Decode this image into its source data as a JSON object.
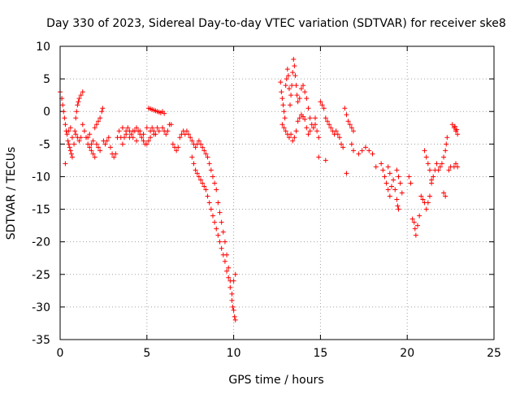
{
  "chart_data": {
    "type": "scatter",
    "title": "Day 330 of 2023, Sidereal Day-to-day VTEC variation (SDTVAR) for receiver ske8",
    "xlabel": "GPS time / hours",
    "ylabel": "SDTVAR / TECUs",
    "xlim": [
      0,
      25
    ],
    "ylim": [
      -35,
      10
    ],
    "xticks": [
      0,
      5,
      10,
      15,
      20,
      25
    ],
    "yticks": [
      10,
      5,
      0,
      -5,
      -10,
      -15,
      -20,
      -25,
      -30,
      -35
    ],
    "xtick_labels": [
      "0",
      "5",
      "10",
      "15",
      "20",
      "25"
    ],
    "ytick_labels": [
      "10",
      "5",
      "0",
      "-5",
      "-10",
      "-15",
      "-20",
      "-25",
      "-30",
      "-35"
    ],
    "grid": true,
    "marker": "+",
    "color": "#ff0000",
    "series": [
      {
        "name": "SDTVAR",
        "points": [
          [
            0.0,
            3.0
          ],
          [
            0.1,
            2.0
          ],
          [
            0.15,
            1.0
          ],
          [
            0.2,
            0.0
          ],
          [
            0.25,
            -1.0
          ],
          [
            0.3,
            -2.0
          ],
          [
            0.35,
            -3.0
          ],
          [
            0.4,
            -3.5
          ],
          [
            0.45,
            -4.5
          ],
          [
            0.5,
            -5.0
          ],
          [
            0.55,
            -5.5
          ],
          [
            0.6,
            -6.0
          ],
          [
            0.65,
            -6.5
          ],
          [
            0.7,
            -7.0
          ],
          [
            0.3,
            -8.0
          ],
          [
            0.5,
            -3.0
          ],
          [
            0.6,
            -2.5
          ],
          [
            0.7,
            -4.0
          ],
          [
            0.8,
            -5.0
          ],
          [
            0.85,
            -3.0
          ],
          [
            0.9,
            -1.0
          ],
          [
            0.95,
            0.0
          ],
          [
            1.0,
            1.0
          ],
          [
            1.05,
            1.5
          ],
          [
            1.1,
            2.0
          ],
          [
            1.2,
            2.5
          ],
          [
            1.3,
            3.0
          ],
          [
            0.9,
            -3.5
          ],
          [
            1.0,
            -4.0
          ],
          [
            1.1,
            -4.5
          ],
          [
            1.2,
            -4.0
          ],
          [
            1.3,
            -2.0
          ],
          [
            1.4,
            -3.0
          ],
          [
            1.5,
            -4.0
          ],
          [
            1.6,
            -5.0
          ],
          [
            1.7,
            -5.5
          ],
          [
            1.8,
            -6.0
          ],
          [
            1.9,
            -6.5
          ],
          [
            2.0,
            -7.0
          ],
          [
            1.6,
            -4.0
          ],
          [
            1.7,
            -3.5
          ],
          [
            1.8,
            -5.0
          ],
          [
            1.9,
            -4.5
          ],
          [
            2.0,
            -2.5
          ],
          [
            2.1,
            -2.0
          ],
          [
            2.2,
            -1.5
          ],
          [
            2.3,
            -1.0
          ],
          [
            2.4,
            0.0
          ],
          [
            2.45,
            0.5
          ],
          [
            2.1,
            -5.0
          ],
          [
            2.2,
            -5.5
          ],
          [
            2.3,
            -6.0
          ],
          [
            2.5,
            -4.5
          ],
          [
            2.6,
            -5.0
          ],
          [
            2.7,
            -4.5
          ],
          [
            2.8,
            -4.0
          ],
          [
            2.9,
            -5.5
          ],
          [
            3.0,
            -6.5
          ],
          [
            3.1,
            -7.0
          ],
          [
            3.2,
            -6.5
          ],
          [
            3.3,
            -4.0
          ],
          [
            3.4,
            -3.0
          ],
          [
            3.5,
            -4.0
          ],
          [
            3.6,
            -5.0
          ],
          [
            3.7,
            -4.0
          ],
          [
            3.8,
            -3.0
          ],
          [
            3.9,
            -2.5
          ],
          [
            4.0,
            -3.0
          ],
          [
            4.1,
            -3.5
          ],
          [
            4.2,
            -4.0
          ],
          [
            4.3,
            -3.0
          ],
          [
            4.4,
            -2.5
          ],
          [
            4.5,
            -3.0
          ],
          [
            4.6,
            -3.5
          ],
          [
            4.7,
            -4.0
          ],
          [
            4.8,
            -4.5
          ],
          [
            4.9,
            -5.0
          ],
          [
            5.0,
            -5.0
          ],
          [
            5.1,
            -4.5
          ],
          [
            5.2,
            -3.0
          ],
          [
            5.3,
            -2.5
          ],
          [
            5.4,
            -3.0
          ],
          [
            5.5,
            -3.5
          ],
          [
            5.6,
            -2.5
          ],
          [
            5.7,
            -3.0
          ],
          [
            3.6,
            -2.5
          ],
          [
            3.8,
            -3.5
          ],
          [
            4.0,
            -4.0
          ],
          [
            4.2,
            -3.0
          ],
          [
            4.4,
            -4.5
          ],
          [
            4.6,
            -3.0
          ],
          [
            4.8,
            -3.5
          ],
          [
            5.0,
            -2.5
          ],
          [
            5.2,
            -4.0
          ],
          [
            5.4,
            -3.5
          ],
          [
            5.1,
            0.5
          ],
          [
            5.2,
            0.4
          ],
          [
            5.3,
            0.3
          ],
          [
            5.4,
            0.2
          ],
          [
            5.5,
            0.1
          ],
          [
            5.6,
            0.0
          ],
          [
            5.7,
            -0.1
          ],
          [
            5.8,
            -0.2
          ],
          [
            5.9,
            0.0
          ],
          [
            6.0,
            -0.3
          ],
          [
            5.9,
            -2.5
          ],
          [
            6.0,
            -3.0
          ],
          [
            6.1,
            -3.5
          ],
          [
            6.2,
            -3.0
          ],
          [
            6.3,
            -2.0
          ],
          [
            6.4,
            -2.0
          ],
          [
            6.5,
            -5.0
          ],
          [
            6.6,
            -5.5
          ],
          [
            6.7,
            -6.0
          ],
          [
            6.8,
            -5.5
          ],
          [
            6.9,
            -4.0
          ],
          [
            7.0,
            -3.5
          ],
          [
            7.1,
            -3.0
          ],
          [
            7.2,
            -3.5
          ],
          [
            7.3,
            -3.0
          ],
          [
            7.4,
            -3.5
          ],
          [
            7.5,
            -4.0
          ],
          [
            7.6,
            -4.5
          ],
          [
            7.7,
            -5.0
          ],
          [
            7.8,
            -5.5
          ],
          [
            7.9,
            -5.0
          ],
          [
            8.0,
            -4.5
          ],
          [
            7.6,
            -7.0
          ],
          [
            7.7,
            -8.0
          ],
          [
            7.8,
            -9.0
          ],
          [
            7.9,
            -9.5
          ],
          [
            8.0,
            -10.0
          ],
          [
            8.1,
            -10.5
          ],
          [
            8.2,
            -11.0
          ],
          [
            8.3,
            -11.5
          ],
          [
            8.4,
            -12.0
          ],
          [
            8.5,
            -13.0
          ],
          [
            8.1,
            -5.0
          ],
          [
            8.2,
            -5.5
          ],
          [
            8.3,
            -6.0
          ],
          [
            8.4,
            -6.5
          ],
          [
            8.5,
            -7.0
          ],
          [
            8.6,
            -8.0
          ],
          [
            8.7,
            -9.0
          ],
          [
            8.8,
            -10.0
          ],
          [
            8.9,
            -11.0
          ],
          [
            8.6,
            -14.0
          ],
          [
            8.7,
            -15.0
          ],
          [
            8.8,
            -16.0
          ],
          [
            8.9,
            -17.0
          ],
          [
            9.0,
            -18.0
          ],
          [
            9.1,
            -19.0
          ],
          [
            9.2,
            -20.0
          ],
          [
            9.3,
            -21.0
          ],
          [
            9.4,
            -22.0
          ],
          [
            9.5,
            -23.0
          ],
          [
            9.0,
            -12.0
          ],
          [
            9.1,
            -14.0
          ],
          [
            9.2,
            -15.5
          ],
          [
            9.3,
            -17.0
          ],
          [
            9.4,
            -18.5
          ],
          [
            9.5,
            -20.0
          ],
          [
            9.6,
            -22.0
          ],
          [
            9.7,
            -24.0
          ],
          [
            9.8,
            -26.0
          ],
          [
            9.9,
            -28.0
          ],
          [
            9.6,
            -24.5
          ],
          [
            9.7,
            -25.5
          ],
          [
            9.8,
            -27.0
          ],
          [
            9.9,
            -29.0
          ],
          [
            10.0,
            -30.5
          ],
          [
            10.05,
            -31.5
          ],
          [
            10.1,
            -32.0
          ],
          [
            9.95,
            -30.0
          ],
          [
            10.0,
            -26.0
          ],
          [
            10.1,
            -25.0
          ],
          [
            12.7,
            4.5
          ],
          [
            12.75,
            3.0
          ],
          [
            12.8,
            2.0
          ],
          [
            12.85,
            1.0
          ],
          [
            12.9,
            0.0
          ],
          [
            12.95,
            -1.0
          ],
          [
            13.0,
            4.0
          ],
          [
            13.05,
            5.0
          ],
          [
            13.1,
            6.5
          ],
          [
            13.15,
            5.5
          ],
          [
            13.2,
            3.5
          ],
          [
            12.8,
            -2.0
          ],
          [
            12.9,
            -2.5
          ],
          [
            13.0,
            -3.0
          ],
          [
            13.1,
            -3.5
          ],
          [
            13.2,
            -4.0
          ],
          [
            13.3,
            -3.5
          ],
          [
            13.4,
            -4.5
          ],
          [
            13.5,
            -4.0
          ],
          [
            13.6,
            -3.0
          ],
          [
            13.25,
            1.0
          ],
          [
            13.3,
            2.5
          ],
          [
            13.35,
            4.0
          ],
          [
            13.4,
            6.0
          ],
          [
            13.45,
            8.0
          ],
          [
            13.5,
            7.0
          ],
          [
            13.55,
            5.5
          ],
          [
            13.6,
            4.0
          ],
          [
            13.65,
            2.5
          ],
          [
            13.7,
            1.5
          ],
          [
            13.8,
            2.0
          ],
          [
            13.9,
            3.5
          ],
          [
            14.0,
            4.0
          ],
          [
            14.1,
            3.0
          ],
          [
            14.2,
            2.0
          ],
          [
            14.3,
            0.5
          ],
          [
            14.4,
            -1.0
          ],
          [
            14.5,
            -2.0
          ],
          [
            14.6,
            -2.5
          ],
          [
            14.7,
            -1.0
          ],
          [
            13.7,
            -1.5
          ],
          [
            13.8,
            -1.0
          ],
          [
            13.9,
            -0.5
          ],
          [
            14.0,
            -0.8
          ],
          [
            14.1,
            -1.2
          ],
          [
            14.2,
            -2.5
          ],
          [
            14.3,
            -3.5
          ],
          [
            14.4,
            -3.0
          ],
          [
            14.7,
            -2.0
          ],
          [
            14.8,
            -3.0
          ],
          [
            14.9,
            -4.0
          ],
          [
            15.0,
            1.5
          ],
          [
            15.1,
            1.0
          ],
          [
            15.2,
            0.5
          ],
          [
            15.3,
            -1.0
          ],
          [
            15.4,
            -1.5
          ],
          [
            14.9,
            -7.0
          ],
          [
            15.3,
            -7.5
          ],
          [
            15.5,
            -2.0
          ],
          [
            15.6,
            -2.5
          ],
          [
            15.7,
            -3.0
          ],
          [
            15.8,
            -3.5
          ],
          [
            15.9,
            -3.0
          ],
          [
            16.0,
            -3.5
          ],
          [
            16.1,
            -4.0
          ],
          [
            16.2,
            -5.0
          ],
          [
            16.3,
            -5.5
          ],
          [
            16.4,
            0.5
          ],
          [
            16.5,
            -0.5
          ],
          [
            16.6,
            -1.5
          ],
          [
            16.7,
            -2.0
          ],
          [
            16.8,
            -2.5
          ],
          [
            16.9,
            -3.0
          ],
          [
            16.5,
            -9.5
          ],
          [
            16.8,
            -5.0
          ],
          [
            16.9,
            -6.0
          ],
          [
            17.2,
            -6.5
          ],
          [
            17.4,
            -6.0
          ],
          [
            17.6,
            -5.5
          ],
          [
            17.8,
            -6.0
          ],
          [
            18.0,
            -6.5
          ],
          [
            18.2,
            -8.5
          ],
          [
            18.5,
            -8.0
          ],
          [
            18.6,
            -9.0
          ],
          [
            18.7,
            -10.0
          ],
          [
            18.8,
            -11.0
          ],
          [
            18.9,
            -12.0
          ],
          [
            19.0,
            -13.0
          ],
          [
            19.1,
            -11.5
          ],
          [
            19.2,
            -10.5
          ],
          [
            19.3,
            -12.0
          ],
          [
            19.4,
            -13.5
          ],
          [
            19.45,
            -14.5
          ],
          [
            19.5,
            -15.0
          ],
          [
            19.4,
            -9.0
          ],
          [
            19.5,
            -10.0
          ],
          [
            19.6,
            -11.0
          ],
          [
            19.7,
            -12.5
          ],
          [
            18.9,
            -8.5
          ],
          [
            19.0,
            -9.5
          ],
          [
            20.1,
            -10.0
          ],
          [
            20.2,
            -11.0
          ],
          [
            20.3,
            -16.5
          ],
          [
            20.4,
            -17.0
          ],
          [
            20.45,
            -18.0
          ],
          [
            20.5,
            -19.0
          ],
          [
            20.6,
            -17.5
          ],
          [
            20.7,
            -16.0
          ],
          [
            20.8,
            -13.0
          ],
          [
            20.9,
            -13.5
          ],
          [
            21.0,
            -14.0
          ],
          [
            21.1,
            -15.0
          ],
          [
            21.2,
            -14.0
          ],
          [
            21.3,
            -13.0
          ],
          [
            21.4,
            -11.0
          ],
          [
            21.5,
            -10.0
          ],
          [
            21.0,
            -6.0
          ],
          [
            21.1,
            -7.0
          ],
          [
            21.2,
            -8.0
          ],
          [
            21.3,
            -9.0
          ],
          [
            21.4,
            -10.5
          ],
          [
            21.6,
            -9.0
          ],
          [
            21.7,
            -8.0
          ],
          [
            21.8,
            -9.0
          ],
          [
            21.9,
            -8.5
          ],
          [
            22.0,
            -8.0
          ],
          [
            22.1,
            -7.0
          ],
          [
            22.2,
            -6.0
          ],
          [
            22.25,
            -5.0
          ],
          [
            22.3,
            -4.0
          ],
          [
            22.1,
            -12.5
          ],
          [
            22.2,
            -13.0
          ],
          [
            22.4,
            -9.0
          ],
          [
            22.5,
            -8.5
          ],
          [
            22.6,
            -2.0
          ],
          [
            22.7,
            -2.5
          ],
          [
            22.8,
            -3.0
          ],
          [
            22.9,
            -3.5
          ],
          [
            22.7,
            -8.5
          ],
          [
            22.8,
            -8.0
          ],
          [
            22.9,
            -8.5
          ],
          [
            22.75,
            -2.3
          ],
          [
            22.85,
            -2.8
          ]
        ]
      }
    ]
  }
}
